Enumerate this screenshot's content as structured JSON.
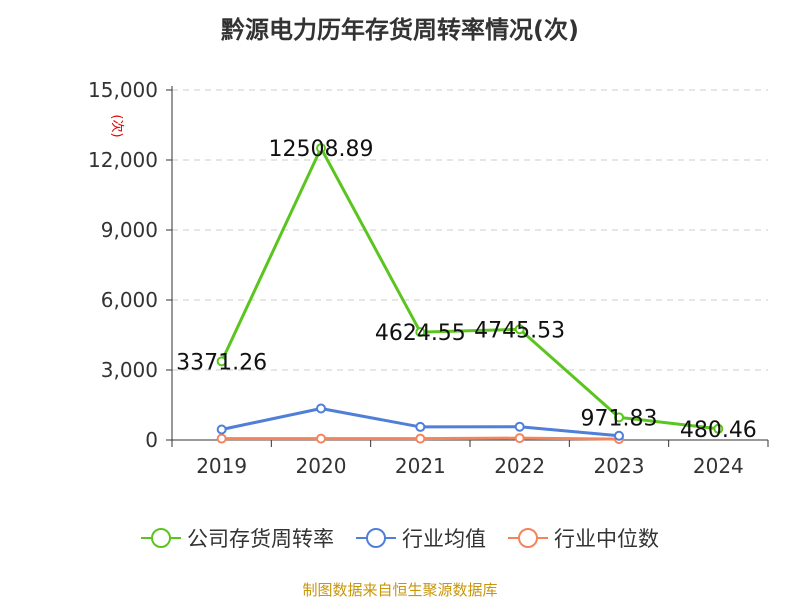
{
  "title": "黔源电力历年存货周转率情况(次)",
  "y_unit": "(次)",
  "source": "制图数据来自恒生聚源数据库",
  "legend": [
    {
      "name": "公司存货周转率",
      "color": "#5bc51f"
    },
    {
      "name": "行业均值",
      "color": "#4f7fd8"
    },
    {
      "name": "行业中位数",
      "color": "#f4845c"
    }
  ],
  "chart_data": {
    "type": "line",
    "title": "黔源电力历年存货周转率情况(次)",
    "ylabel": "(次)",
    "categories": [
      "2019",
      "2020",
      "2021",
      "2022",
      "2023",
      "2024"
    ],
    "y_ticks": [
      "0",
      "3,000",
      "6,000",
      "9,000",
      "12,000",
      "15,000"
    ],
    "ylim": [
      0,
      15000
    ],
    "grid": true,
    "legend_position": "bottom",
    "series": [
      {
        "name": "公司存货周转率",
        "color": "#5bc51f",
        "values": [
          3371.26,
          12508.89,
          4624.55,
          4745.53,
          971.83,
          480.46
        ],
        "labels": [
          "3371.26",
          "12508.89",
          "4624.55",
          "4745.53",
          "971.83",
          "480.46"
        ]
      },
      {
        "name": "行业均值",
        "color": "#4f7fd8",
        "values": [
          450,
          1350,
          560,
          570,
          180,
          null
        ]
      },
      {
        "name": "行业中位数",
        "color": "#f4845c",
        "values": [
          60,
          60,
          60,
          80,
          40,
          null
        ]
      }
    ]
  }
}
